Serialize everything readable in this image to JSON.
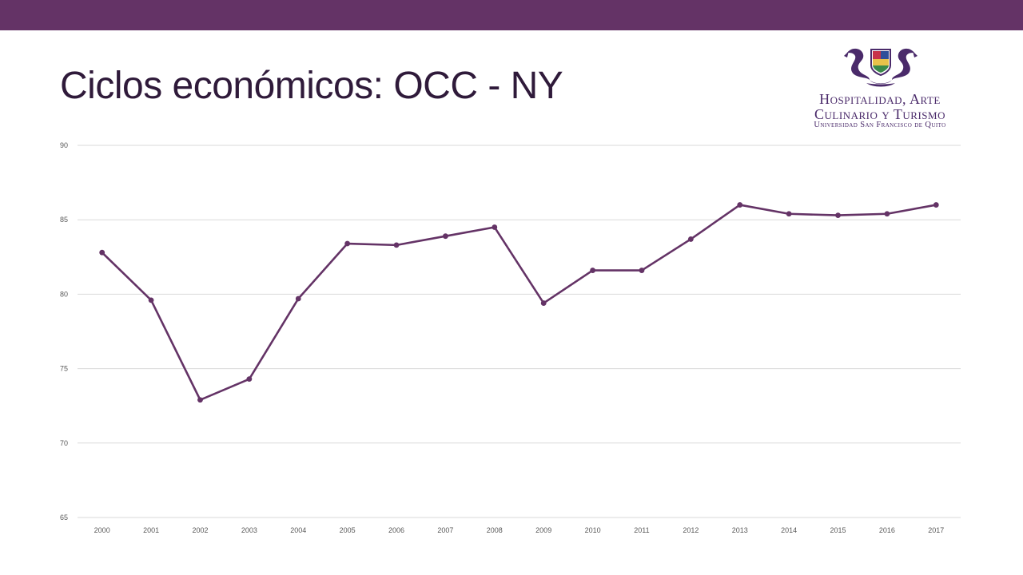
{
  "slide": {
    "title": "Ciclos económicos: OCC - NY"
  },
  "logo": {
    "line1": "Hospitalidad, Arte",
    "line2": "Culinario y Turismo",
    "line3": "Universidad San Francisco de Quito"
  },
  "colors": {
    "top_bar": "#643366",
    "series": "#643366",
    "gridline": "#d9d9d9",
    "logo": "#4a2a6a"
  },
  "chart_data": {
    "type": "line",
    "title": "",
    "xlabel": "",
    "ylabel": "",
    "categories": [
      "2000",
      "2001",
      "2002",
      "2003",
      "2004",
      "2005",
      "2006",
      "2007",
      "2008",
      "2009",
      "2010",
      "2011",
      "2012",
      "2013",
      "2014",
      "2015",
      "2016",
      "2017"
    ],
    "series": [
      {
        "values": [
          82.8,
          79.6,
          72.9,
          74.3,
          79.7,
          83.4,
          83.3,
          83.9,
          84.5,
          79.4,
          81.6,
          81.6,
          83.7,
          86.0,
          85.4,
          85.3,
          85.4,
          86.0
        ]
      }
    ],
    "ylim": [
      65,
      90
    ],
    "yticks": [
      65,
      70,
      75,
      80,
      85,
      90
    ],
    "grid": true,
    "legend": "none"
  }
}
